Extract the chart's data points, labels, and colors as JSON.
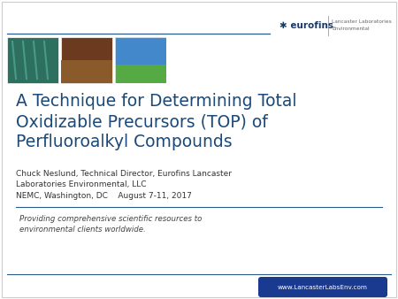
{
  "bg_color": "#ffffff",
  "header_line_color": "#2a5a8a",
  "eurofins_color": "#1a3a6b",
  "lancaster_line1": "Lancaster Laboratories",
  "lancaster_line2": "Environmental",
  "lancaster_color": "#666666",
  "divider_color": "#aaaaaa",
  "title_line1": "A Technique for Determining Total",
  "title_line2": "Oxidizable Precursors (TOP) of",
  "title_line3": "Perfluoroalkyl Compounds",
  "title_color": "#1a4a7a",
  "author_line1": "Chuck Neslund, Technical Director, Eurofins Lancaster",
  "author_line2": "Laboratories Environmental, LLC",
  "author_line3": "NEMC, Washington, DC    August 7-11, 2017",
  "author_color": "#333333",
  "tagline_line1": "Providing comprehensive scientific resources to",
  "tagline_line2": "environmental clients worldwide.",
  "tagline_color": "#444444",
  "footer_bg": "#1a3a8f",
  "footer_text": "www.LancasterLabsEnv.com",
  "footer_color": "#ffffff",
  "separator_color": "#2a5a8a",
  "border_color": "#cccccc",
  "img1_color": "#2d7060",
  "img2_top": "#6b3a1f",
  "img2_bottom": "#8b5a2b",
  "img3_sky": "#4488cc",
  "img3_field": "#55aa44"
}
